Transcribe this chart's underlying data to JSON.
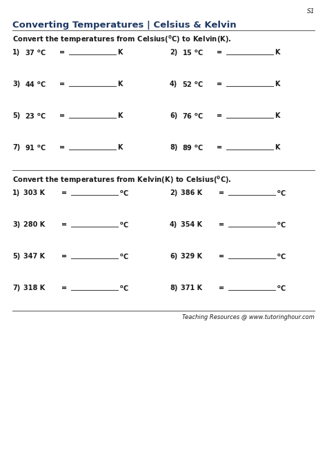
{
  "title": "Converting Temperatures | Celsius & Kelvin",
  "sheet_label": "S1",
  "celsius_to_kelvin": [
    {
      "num": "1)",
      "value": "37",
      "unit_out": "K"
    },
    {
      "num": "2)",
      "value": "15",
      "unit_out": "K"
    },
    {
      "num": "3)",
      "value": "44",
      "unit_out": "K"
    },
    {
      "num": "4)",
      "value": "52",
      "unit_out": "K"
    },
    {
      "num": "5)",
      "value": "23",
      "unit_out": "K"
    },
    {
      "num": "6)",
      "value": "76",
      "unit_out": "K"
    },
    {
      "num": "7)",
      "value": "91",
      "unit_out": "K"
    },
    {
      "num": "8)",
      "value": "89",
      "unit_out": "K"
    }
  ],
  "kelvin_to_celsius": [
    {
      "num": "1)",
      "value": "303",
      "unit_out": "oC"
    },
    {
      "num": "2)",
      "value": "386",
      "unit_out": "oC"
    },
    {
      "num": "3)",
      "value": "280",
      "unit_out": "oC"
    },
    {
      "num": "4)",
      "value": "354",
      "unit_out": "oC"
    },
    {
      "num": "5)",
      "value": "347",
      "unit_out": "oC"
    },
    {
      "num": "6)",
      "value": "329",
      "unit_out": "oC"
    },
    {
      "num": "7)",
      "value": "318",
      "unit_out": "oC"
    },
    {
      "num": "8)",
      "value": "371",
      "unit_out": "oC"
    }
  ],
  "footer": "Teaching Resources @ www.tutoringhour.com",
  "bg_color": "#ffffff",
  "title_color": "#1f3864",
  "header_color": "#1a1a1a",
  "body_color": "#1a1a1a",
  "line_color": "#666666",
  "blank_color": "#444444",
  "fs_title": 9.5,
  "fs_header": 7.2,
  "fs_body": 7.0,
  "fs_sheet": 6.5,
  "fs_footer": 6.0
}
